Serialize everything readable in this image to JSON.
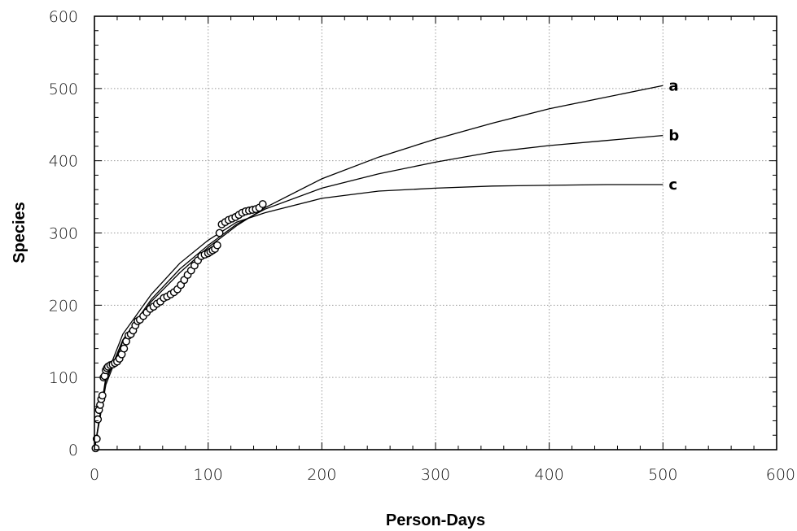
{
  "chart_data": {
    "type": "line",
    "title": "",
    "xlabel": "Person-Days",
    "ylabel": "Species",
    "xlim": [
      0,
      600
    ],
    "ylim": [
      0,
      600
    ],
    "xticks": [
      0,
      100,
      200,
      300,
      400,
      500,
      600
    ],
    "yticks": [
      0,
      100,
      200,
      300,
      400,
      500,
      600
    ],
    "grid": true,
    "observed": {
      "x": [
        1,
        2,
        3,
        4,
        5,
        6,
        7,
        8,
        9,
        10,
        11,
        12,
        14,
        16,
        18,
        20,
        22,
        24,
        26,
        28,
        30,
        32,
        34,
        36,
        38,
        40,
        43,
        46,
        49,
        52,
        55,
        58,
        61,
        64,
        67,
        70,
        73,
        76,
        79,
        82,
        85,
        88,
        91,
        94,
        97,
        100,
        102,
        104,
        106,
        108,
        110,
        112,
        115,
        118,
        121,
        124,
        127,
        130,
        133,
        136,
        139,
        142,
        145,
        148
      ],
      "y": [
        2,
        15,
        42,
        55,
        62,
        70,
        75,
        100,
        102,
        110,
        113,
        115,
        117,
        118,
        120,
        122,
        126,
        132,
        140,
        150,
        158,
        160,
        165,
        172,
        178,
        180,
        185,
        190,
        195,
        198,
        202,
        205,
        210,
        212,
        215,
        218,
        222,
        228,
        235,
        242,
        248,
        255,
        262,
        268,
        270,
        272,
        274,
        276,
        278,
        283,
        300,
        312,
        315,
        318,
        320,
        322,
        325,
        328,
        330,
        331,
        332,
        333,
        335,
        340
      ]
    },
    "series": [
      {
        "name": "a",
        "x": [
          0,
          10,
          25,
          50,
          75,
          100,
          125,
          150,
          200,
          250,
          300,
          350,
          400,
          450,
          500
        ],
        "y": [
          0,
          90,
          150,
          205,
          245,
          280,
          310,
          335,
          375,
          405,
          430,
          452,
          472,
          488,
          504
        ]
      },
      {
        "name": "b",
        "x": [
          0,
          10,
          25,
          50,
          75,
          100,
          125,
          150,
          200,
          250,
          300,
          350,
          400,
          450,
          500
        ],
        "y": [
          0,
          95,
          152,
          208,
          250,
          283,
          312,
          333,
          362,
          382,
          398,
          412,
          421,
          428,
          435
        ]
      },
      {
        "name": "c",
        "x": [
          0,
          10,
          25,
          50,
          75,
          100,
          125,
          150,
          200,
          250,
          300,
          350,
          400,
          450,
          500
        ],
        "y": [
          0,
          100,
          160,
          215,
          258,
          290,
          315,
          328,
          348,
          358,
          362,
          365,
          366,
          367,
          367
        ]
      }
    ]
  }
}
